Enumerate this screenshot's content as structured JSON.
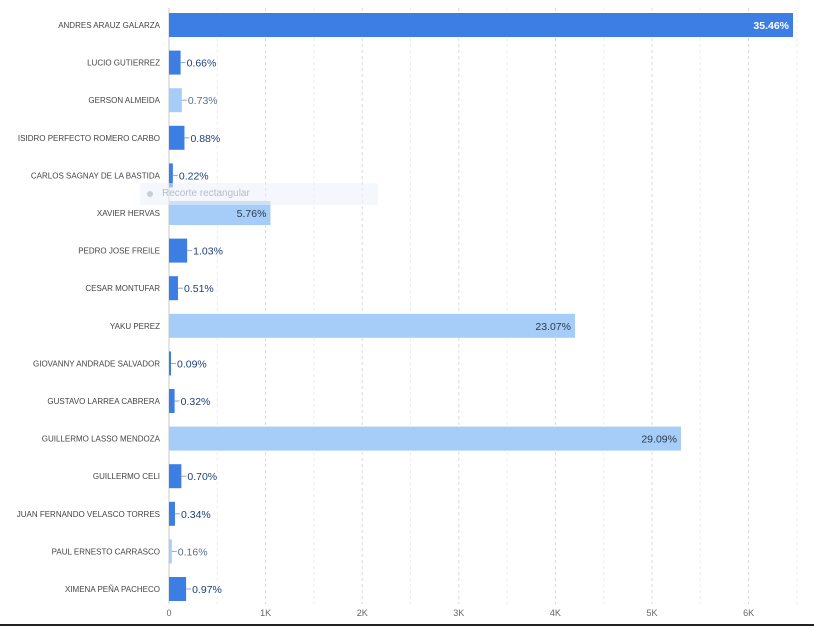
{
  "chart_data": {
    "type": "bar",
    "orientation": "horizontal",
    "categories": [
      "ANDRES ARAUZ GALARZA",
      "LUCIO GUTIERREZ",
      "GERSON ALMEIDA",
      "ISIDRO PERFECTO ROMERO CARBO",
      "CARLOS SAGNAY DE LA BASTIDA",
      "XAVIER HERVAS",
      "PEDRO JOSE FREILE",
      "CESAR MONTUFAR",
      "YAKU PEREZ",
      "GIOVANNY ANDRADE SALVADOR",
      "GUSTAVO LARREA CABRERA",
      "GUILLERMO LASSO MENDOZA",
      "GUILLERMO CELI",
      "JUAN FERNANDO VELASCO TORRES",
      "PAUL ERNESTO CARRASCO",
      "XIMENA PEÑA PACHECO"
    ],
    "values": [
      6460,
      120,
      133,
      160,
      40,
      1050,
      188,
      93,
      4203,
      16,
      58,
      5300,
      128,
      62,
      29,
      177
    ],
    "data_labels": [
      "35.46%",
      "0.66%",
      "0.73%",
      "0.88%",
      "0.22%",
      "5.76%",
      "1.03%",
      "0.51%",
      "23.07%",
      "0.09%",
      "0.32%",
      "29.09%",
      "0.70%",
      "0.34%",
      "0.16%",
      "0.97%"
    ],
    "highlight": [
      true,
      true,
      false,
      true,
      true,
      false,
      true,
      true,
      false,
      true,
      true,
      false,
      true,
      true,
      false,
      true
    ],
    "x_ticks": [
      0,
      1000,
      2000,
      3000,
      4000,
      5000,
      6000
    ],
    "x_tick_labels": [
      "0",
      "1K",
      "2K",
      "3K",
      "4K",
      "5K",
      "6K"
    ],
    "xlim": [
      0,
      6500
    ],
    "grid": "vertical dashed",
    "colors": {
      "dark": "#3d7ee5",
      "light": "#a6cdf8",
      "dark_label": "#1f3f7a",
      "light_label": "#5a6f8c",
      "inside_dark_label": "#ffffff",
      "inside_light_label": "#2b3a4d"
    }
  },
  "overlay": {
    "text": "Recorte rectangular"
  }
}
